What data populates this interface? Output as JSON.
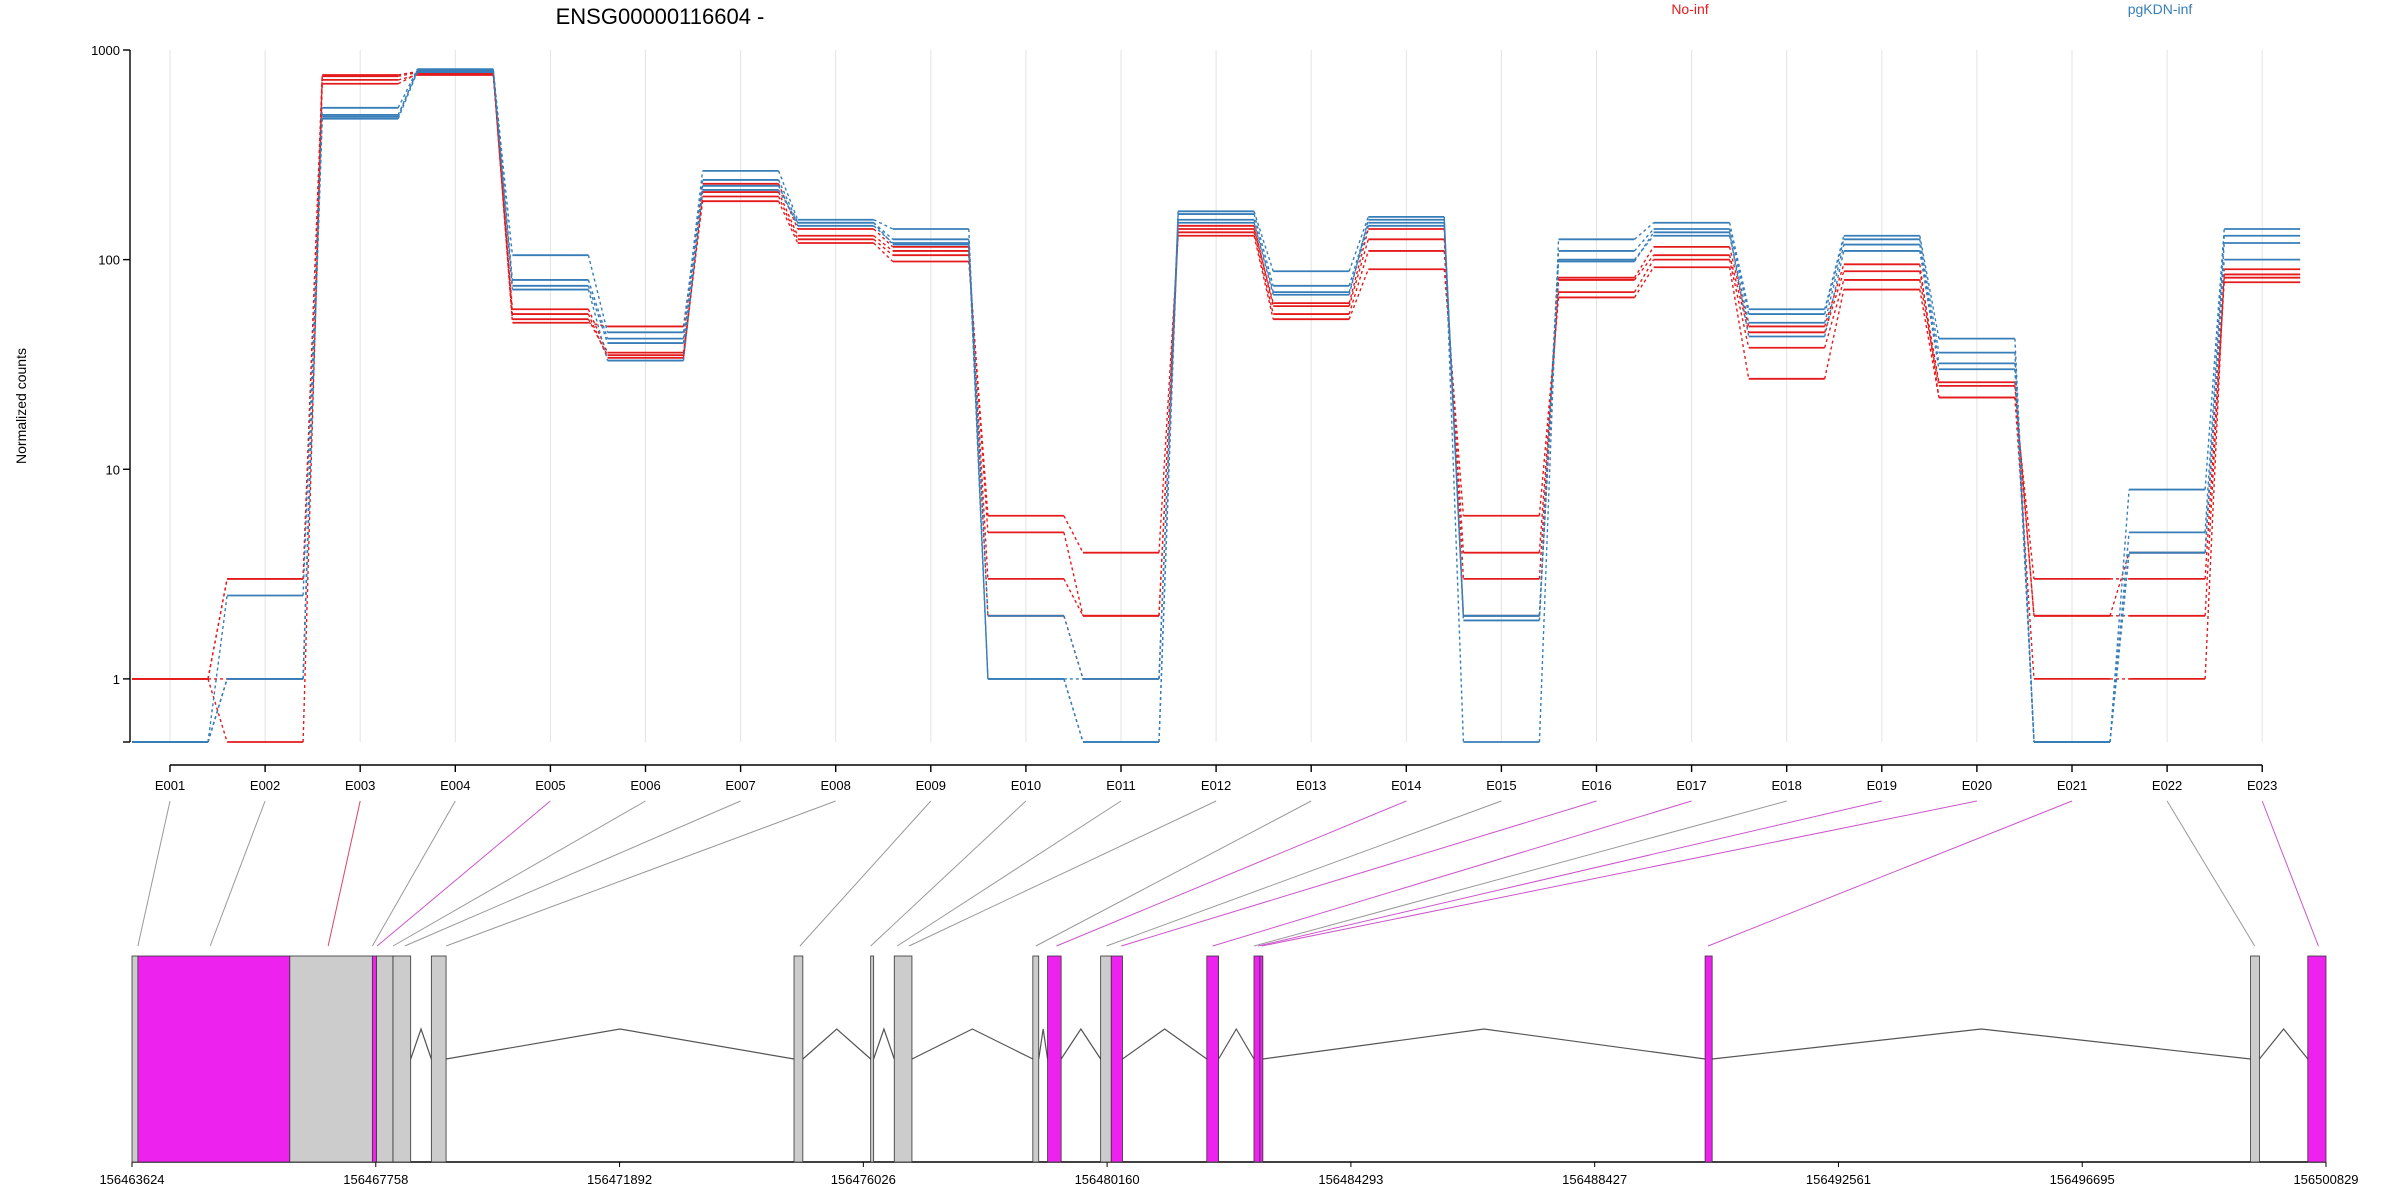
{
  "chart_data": {
    "type": "line",
    "title": "ENSG00000116604 -",
    "ylabel": "Normalized counts",
    "yscale": "log",
    "ylim": [
      0.5,
      1000
    ],
    "yticks": [
      {
        "value": 1,
        "label": "1"
      },
      {
        "value": 10,
        "label": "10"
      },
      {
        "value": 100,
        "label": "100"
      },
      {
        "value": 1000,
        "label": "1000"
      }
    ],
    "grid": "vertical",
    "legend": [
      {
        "name": "No-inf",
        "color": "#e41a1c",
        "position": "top-center"
      },
      {
        "name": "pgKDN-inf",
        "color": "#377eb8",
        "position": "top-right"
      }
    ],
    "categories": [
      "E001",
      "E002",
      "E003",
      "E004",
      "E005",
      "E006",
      "E007",
      "E008",
      "E009",
      "E010",
      "E011",
      "E012",
      "E013",
      "E014",
      "E015",
      "E016",
      "E017",
      "E018",
      "E019",
      "E020",
      "E021",
      "E022",
      "E023"
    ],
    "series": [
      {
        "group": "No-inf",
        "color": "#e41a1c",
        "values": [
          1,
          3,
          720,
          760,
          58,
          36,
          190,
          120,
          98,
          6,
          4,
          130,
          52,
          90,
          6,
          66,
          92,
          27,
          72,
          22,
          3,
          3,
          78
        ]
      },
      {
        "group": "No-inf",
        "color": "#e41a1c",
        "values": [
          1,
          1,
          750,
          780,
          55,
          34,
          200,
          125,
          105,
          5,
          2,
          135,
          55,
          110,
          4,
          70,
          100,
          38,
          80,
          25,
          2,
          2,
          82
        ]
      },
      {
        "group": "No-inf",
        "color": "#e41a1c",
        "values": [
          1,
          0.5,
          690,
          770,
          52,
          35,
          210,
          130,
          110,
          3,
          2,
          145,
          60,
          125,
          3,
          80,
          105,
          45,
          88,
          26,
          2,
          4,
          85
        ]
      },
      {
        "group": "No-inf",
        "color": "#e41a1c",
        "values": [
          1,
          3,
          760,
          790,
          50,
          48,
          230,
          140,
          115,
          2,
          1,
          140,
          62,
          140,
          2,
          82,
          115,
          48,
          95,
          22,
          1,
          1,
          90
        ]
      },
      {
        "group": "pgKDN-inf",
        "color": "#377eb8",
        "values": [
          0.5,
          1,
          480,
          800,
          105,
          45,
          265,
          155,
          140,
          1,
          0.5,
          170,
          88,
          160,
          0.5,
          125,
          150,
          58,
          130,
          42,
          0.5,
          8,
          140
        ]
      },
      {
        "group": "pgKDN-inf",
        "color": "#377eb8",
        "values": [
          0.5,
          1,
          530,
          810,
          80,
          42,
          240,
          150,
          125,
          2,
          1,
          165,
          75,
          150,
          2,
          110,
          140,
          55,
          125,
          36,
          0.5,
          5,
          130
        ]
      },
      {
        "group": "pgKDN-inf",
        "color": "#377eb8",
        "values": [
          0.5,
          2.5,
          490,
          795,
          75,
          40,
          225,
          145,
          120,
          1,
          1,
          155,
          70,
          145,
          1.9,
          100,
          130,
          50,
          118,
          32,
          0.5,
          4,
          120
        ]
      },
      {
        "group": "pgKDN-inf",
        "color": "#377eb8",
        "values": [
          0.5,
          1,
          470,
          785,
          72,
          33,
          215,
          150,
          118,
          1,
          0.5,
          150,
          68,
          155,
          2,
          98,
          135,
          43,
          110,
          30,
          0.5,
          4,
          100
        ]
      }
    ],
    "gene_model": {
      "coordinate_ticks": [
        "156463624",
        "156467758",
        "156471892",
        "156476026",
        "156480160",
        "156484293",
        "156488427",
        "156492561",
        "156496695",
        "156500829"
      ],
      "range": [
        156463624,
        156500829
      ],
      "exons": [
        {
          "start": 156463624,
          "end": 156463724,
          "color": "#cccccc"
        },
        {
          "start": 156463724,
          "end": 156466300,
          "color": "#ee22ee"
        },
        {
          "start": 156466300,
          "end": 156467700,
          "color": "#cccccc"
        },
        {
          "start": 156467700,
          "end": 156467770,
          "color": "#ee22ee"
        },
        {
          "start": 156467770,
          "end": 156468050,
          "color": "#cccccc"
        },
        {
          "start": 156468050,
          "end": 156468350,
          "color": "#cccccc"
        },
        {
          "start": 156468700,
          "end": 156468950,
          "color": "#cccccc"
        },
        {
          "start": 156474850,
          "end": 156475000,
          "color": "#cccccc"
        },
        {
          "start": 156476150,
          "end": 156476200,
          "color": "#cccccc"
        },
        {
          "start": 156476550,
          "end": 156476850,
          "color": "#cccccc"
        },
        {
          "start": 156478900,
          "end": 156479000,
          "color": "#cccccc"
        },
        {
          "start": 156479150,
          "end": 156479380,
          "color": "#ee22ee"
        },
        {
          "start": 156480050,
          "end": 156480230,
          "color": "#cccccc"
        },
        {
          "start": 156480230,
          "end": 156480420,
          "color": "#ee22ee"
        },
        {
          "start": 156481850,
          "end": 156482050,
          "color": "#ee22ee"
        },
        {
          "start": 156482650,
          "end": 156482750,
          "color": "#ee22ee"
        },
        {
          "start": 156482750,
          "end": 156482800,
          "color": "#ee22ee"
        },
        {
          "start": 156490300,
          "end": 156490420,
          "color": "#ee22ee"
        },
        {
          "start": 156499550,
          "end": 156499700,
          "color": "#cccccc"
        },
        {
          "start": 156500520,
          "end": 156500829,
          "color": "#ee22ee"
        }
      ],
      "exon_links": [
        {
          "exon": "E001",
          "genomic": 156463724,
          "color": "#999999"
        },
        {
          "exon": "E002",
          "genomic": 156464950,
          "color": "#999999"
        },
        {
          "exon": "E003",
          "genomic": 156466950,
          "color": "#dd4466"
        },
        {
          "exon": "E004",
          "genomic": 156467700,
          "color": "#999999"
        },
        {
          "exon": "E005",
          "genomic": 156467780,
          "color": "#cc55cc"
        },
        {
          "exon": "E006",
          "genomic": 156468050,
          "color": "#999999"
        },
        {
          "exon": "E007",
          "genomic": 156468250,
          "color": "#999999"
        },
        {
          "exon": "E008",
          "genomic": 156468950,
          "color": "#999999"
        },
        {
          "exon": "E009",
          "genomic": 156474950,
          "color": "#999999"
        },
        {
          "exon": "E010",
          "genomic": 156476150,
          "color": "#999999"
        },
        {
          "exon": "E011",
          "genomic": 156476600,
          "color": "#999999"
        },
        {
          "exon": "E012",
          "genomic": 156476800,
          "color": "#999999"
        },
        {
          "exon": "E013",
          "genomic": 156478950,
          "color": "#999999"
        },
        {
          "exon": "E014",
          "genomic": 156479300,
          "color": "#cc55cc"
        },
        {
          "exon": "E015",
          "genomic": 156480150,
          "color": "#999999"
        },
        {
          "exon": "E016",
          "genomic": 156480400,
          "color": "#cc55cc"
        },
        {
          "exon": "E017",
          "genomic": 156481950,
          "color": "#cc55cc"
        },
        {
          "exon": "E018",
          "genomic": 156482650,
          "color": "#999999"
        },
        {
          "exon": "E019",
          "genomic": 156482720,
          "color": "#cc55cc"
        },
        {
          "exon": "E020",
          "genomic": 156482780,
          "color": "#cc55cc"
        },
        {
          "exon": "E021",
          "genomic": 156490350,
          "color": "#cc55cc"
        },
        {
          "exon": "E022",
          "genomic": 156499620,
          "color": "#999999"
        },
        {
          "exon": "E023",
          "genomic": 156500700,
          "color": "#cc55cc"
        }
      ]
    }
  }
}
